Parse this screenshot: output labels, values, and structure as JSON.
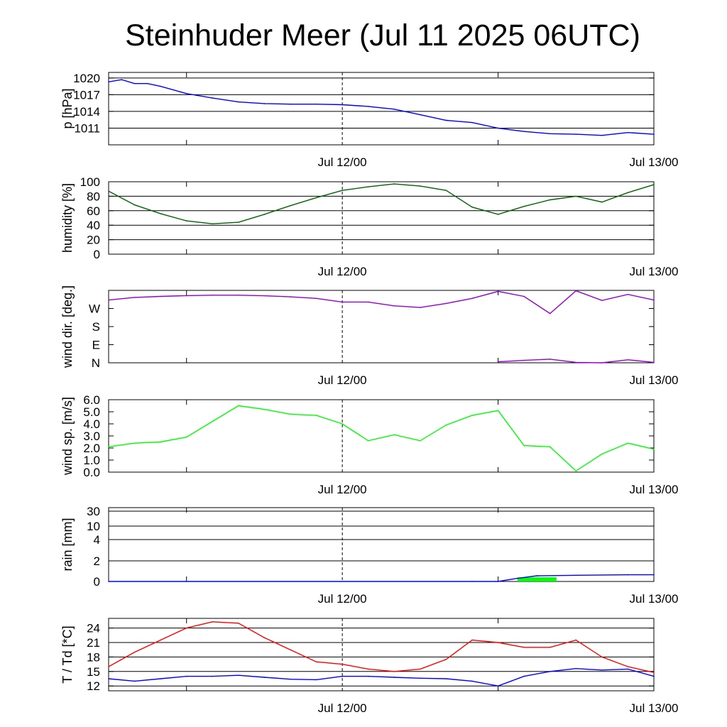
{
  "title": "Steinhuder Meer (Jul 11 2025 06UTC)",
  "colors": {
    "pressure": "#0000ff",
    "humidity": "#006400",
    "wind_dir": "#9400d3",
    "wind_speed": "#00ff00",
    "rain_line": "#0000ff",
    "rain_bar": "#00ff00",
    "temperature": "#ff0000",
    "dewpoint": "#0000ff"
  },
  "chart_data": [
    {
      "type": "line",
      "ylabel": "p [hPa]",
      "x_ticks": [
        "Jul 12/00",
        "Jul 13/00"
      ],
      "x_range": [
        "Jul 11 06UTC",
        "Jul 13 00UTC"
      ],
      "ylim": [
        1008,
        1021
      ],
      "y_ticks": [
        1011,
        1014,
        1017,
        1020
      ],
      "grid": true,
      "series": [
        {
          "color": "pressure",
          "x": [
            0,
            1,
            2,
            3,
            4,
            6,
            8,
            10,
            12,
            14,
            16,
            18,
            20,
            22,
            24,
            26,
            28,
            30,
            32,
            34,
            36,
            38,
            40,
            42
          ],
          "values": [
            1019.3,
            1019.7,
            1019.0,
            1019.0,
            1018.5,
            1017.2,
            1016.4,
            1015.7,
            1015.4,
            1015.3,
            1015.3,
            1015.2,
            1014.9,
            1014.4,
            1013.4,
            1012.4,
            1012.0,
            1011.0,
            1010.4,
            1010.0,
            1009.9,
            1009.7,
            1010.2,
            1009.9
          ]
        }
      ]
    },
    {
      "type": "line",
      "ylabel": "humidity [%]",
      "x_ticks": [
        "Jul 12/00",
        "Jul 13/00"
      ],
      "ylim": [
        0,
        100
      ],
      "y_ticks": [
        0,
        20,
        40,
        60,
        80,
        100
      ],
      "grid": true,
      "series": [
        {
          "color": "humidity",
          "x": [
            0,
            2,
            4,
            6,
            8,
            10,
            12,
            14,
            16,
            18,
            20,
            22,
            24,
            26,
            28,
            30,
            32,
            34,
            36,
            38,
            40,
            42
          ],
          "values": [
            87,
            68,
            56,
            46,
            42,
            44,
            55,
            67,
            78,
            88,
            93,
            97,
            94,
            88,
            65,
            55,
            66,
            75,
            80,
            72,
            85,
            96
          ]
        }
      ]
    },
    {
      "type": "line",
      "ylabel": "wind dir. [deg.]",
      "x_ticks": [
        "Jul 12/00",
        "Jul 13/00"
      ],
      "y_tick_labels": [
        "N",
        "E",
        "S",
        "W"
      ],
      "y_tick_values": [
        0,
        90,
        180,
        270
      ],
      "ylim": [
        0,
        360
      ],
      "grid": false,
      "series": [
        {
          "color": "wind_dir",
          "x": [
            0,
            2,
            4,
            6,
            8,
            10,
            12,
            14,
            16,
            18,
            20,
            22,
            24,
            26,
            28,
            30,
            32,
            34,
            36,
            38,
            40,
            42
          ],
          "values": [
            312,
            325,
            330,
            334,
            336,
            336,
            333,
            328,
            320,
            302,
            302,
            283,
            275,
            295,
            320,
            355,
            330,
            245,
            358,
            310,
            340,
            312
          ]
        },
        {
          "color": "wind_dir",
          "x": [
            30,
            32,
            34,
            36,
            38,
            40,
            42
          ],
          "values": [
            5,
            12,
            18,
            2,
            0,
            15,
            2
          ]
        }
      ]
    },
    {
      "type": "line",
      "ylabel": "wind sp. [m/s]",
      "x_ticks": [
        "Jul 12/00",
        "Jul 13/00"
      ],
      "ylim": [
        0.0,
        6.0
      ],
      "y_ticks": [
        "0.0",
        "1.0",
        "2.0",
        "3.0",
        "4.0",
        "5.0",
        "6.0"
      ],
      "grid": false,
      "series": [
        {
          "color": "wind_speed",
          "x": [
            0,
            2,
            4,
            6,
            8,
            10,
            12,
            14,
            16,
            18,
            20,
            22,
            24,
            26,
            28,
            30,
            32,
            34,
            36,
            38,
            40,
            42
          ],
          "values": [
            2.1,
            2.4,
            2.5,
            2.9,
            4.2,
            5.5,
            5.2,
            4.8,
            4.7,
            4.0,
            2.6,
            3.1,
            2.6,
            3.9,
            4.7,
            5.1,
            2.2,
            2.1,
            0.1,
            1.5,
            2.4,
            1.9
          ]
        }
      ]
    },
    {
      "type": "bar",
      "ylabel": "rain [mm]",
      "x_ticks": [
        "Jul 12/00",
        "Jul 13/00"
      ],
      "y_ticks": [
        "0",
        "2",
        "4",
        "10",
        "30"
      ],
      "grid": true,
      "bars": [
        {
          "color": "rain_bar",
          "x_start": 31.5,
          "x_end": 34.5,
          "value": 0.4
        }
      ],
      "series": [
        {
          "color": "rain_line",
          "x": [
            0,
            28,
            30,
            31.5,
            33,
            36,
            40,
            42
          ],
          "values": [
            0,
            0,
            0,
            0.3,
            0.55,
            0.6,
            0.65,
            0.65
          ]
        }
      ]
    },
    {
      "type": "line",
      "ylabel": "T / Td [*C]",
      "x_ticks": [
        "Jul 12/00",
        "Jul 13/00"
      ],
      "ylim": [
        11,
        26
      ],
      "y_ticks": [
        12,
        15,
        18,
        21,
        24
      ],
      "grid": true,
      "series": [
        {
          "name": "T",
          "color": "temperature",
          "x": [
            0,
            2,
            4,
            6,
            8,
            10,
            12,
            14,
            16,
            18,
            20,
            22,
            24,
            26,
            28,
            30,
            32,
            34,
            36,
            38,
            40,
            42
          ],
          "values": [
            16.0,
            19.0,
            21.5,
            24.0,
            25.3,
            25.0,
            22.0,
            19.5,
            17.0,
            16.5,
            15.5,
            15.0,
            15.5,
            17.5,
            21.5,
            21.0,
            20.0,
            20.0,
            21.5,
            18.0,
            16.0,
            14.8
          ]
        },
        {
          "name": "Td",
          "color": "dewpoint",
          "x": [
            0,
            2,
            4,
            6,
            8,
            10,
            12,
            14,
            16,
            18,
            20,
            22,
            24,
            26,
            28,
            30,
            32,
            34,
            36,
            38,
            40,
            42
          ],
          "values": [
            13.5,
            13.0,
            13.5,
            14.0,
            14.0,
            14.2,
            13.8,
            13.4,
            13.3,
            14.0,
            14.0,
            13.8,
            13.6,
            13.5,
            13.0,
            12.0,
            14.0,
            15.0,
            15.6,
            15.3,
            15.5,
            14.0
          ]
        }
      ]
    }
  ]
}
